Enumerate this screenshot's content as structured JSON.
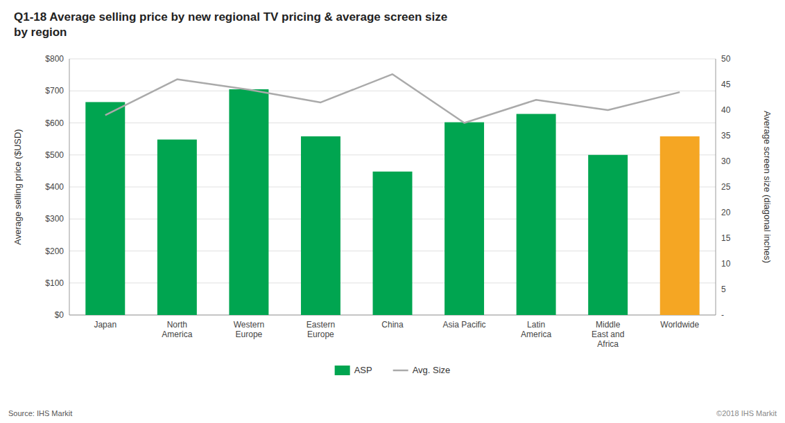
{
  "chart_data": {
    "type": "bar",
    "title": "Q1-18 Average selling price by new regional TV pricing & average screen size\nby region",
    "categories": [
      "Japan",
      "North\nAmerica",
      "Western\nEurope",
      "Eastern\nEurope",
      "China",
      "Asia Pacific",
      "Latin\nAmerica",
      "Middle\nEast and\nAfrica",
      "Worldwide"
    ],
    "series": [
      {
        "name": "ASP",
        "type": "bar",
        "color": "#00a550",
        "colors": [
          "#00a550",
          "#00a550",
          "#00a550",
          "#00a550",
          "#00a550",
          "#00a550",
          "#00a550",
          "#00a550",
          "#f5a623"
        ],
        "values": [
          665,
          548,
          705,
          558,
          448,
          602,
          628,
          500,
          558
        ]
      },
      {
        "name": "Avg. Size",
        "type": "line",
        "color": "#aaaaaa",
        "axis": "y2",
        "values": [
          39,
          46,
          44,
          41.5,
          47,
          37.5,
          42,
          40,
          43.5
        ]
      }
    ],
    "ylabel": "Average selling price ($USD)",
    "y2label": "Average screen size (diagonal inches)",
    "ylim": [
      0,
      800
    ],
    "yticks": [
      {
        "value": 0,
        "label": "$0"
      },
      {
        "value": 100,
        "label": "$100"
      },
      {
        "value": 200,
        "label": "$200"
      },
      {
        "value": 300,
        "label": "$300"
      },
      {
        "value": 400,
        "label": "$400"
      },
      {
        "value": 500,
        "label": "$500"
      },
      {
        "value": 600,
        "label": "$600"
      },
      {
        "value": 700,
        "label": "$700"
      },
      {
        "value": 800,
        "label": "$800"
      }
    ],
    "y2lim": [
      0,
      50
    ],
    "y2ticks": [
      {
        "value": 0,
        "label": "-"
      },
      5,
      10,
      15,
      20,
      25,
      30,
      35,
      40,
      45,
      50
    ],
    "grid": true,
    "legend": "bottom",
    "annotations": [
      "Source: IHS Markit",
      "©2018 IHS Markit"
    ]
  }
}
